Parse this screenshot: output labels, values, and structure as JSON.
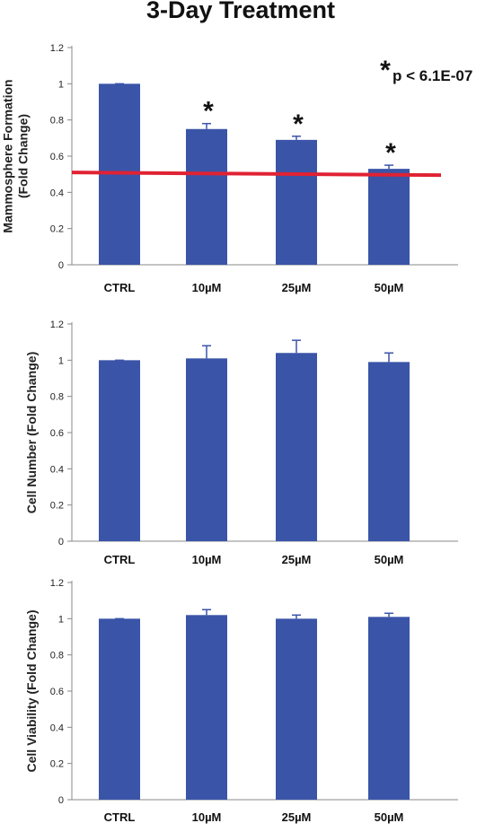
{
  "title": "3-Day Treatment",
  "colors": {
    "bar": "#3a54a8",
    "threshold": "#e02233",
    "axis": "#888888"
  },
  "chart_data": [
    {
      "type": "bar",
      "ylabel": [
        "Mammosphere Formation",
        "(Fold Change)"
      ],
      "categories": [
        "CTRL",
        "10µM",
        "25µM",
        "50µM"
      ],
      "values": [
        1.0,
        0.75,
        0.69,
        0.53
      ],
      "error": [
        0.0,
        0.03,
        0.02,
        0.02
      ],
      "ylim": [
        0,
        1.2
      ],
      "yticks": [
        "0",
        "0.2",
        "0.4",
        "0.6",
        "0.8",
        "1",
        "1.2"
      ],
      "significance": [
        "",
        "*",
        "*",
        "*"
      ],
      "annotation": {
        "star": "*",
        "text": "p < 6.1E-07"
      },
      "threshold": {
        "y_start": 0.51,
        "y_end": 0.495
      }
    },
    {
      "type": "bar",
      "ylabel": [
        "Cell Number  (Fold Change)"
      ],
      "categories": [
        "CTRL",
        "10µM",
        "25µM",
        "50µM"
      ],
      "values": [
        1.0,
        1.01,
        1.04,
        0.99
      ],
      "error": [
        0.0,
        0.07,
        0.07,
        0.05
      ],
      "ylim": [
        0,
        1.2
      ],
      "yticks": [
        "0",
        "0.2",
        "0.4",
        "0.6",
        "0.8",
        "1",
        "1.2"
      ]
    },
    {
      "type": "bar",
      "ylabel": [
        "Cell Viability (Fold Change)"
      ],
      "categories": [
        "CTRL",
        "10µM",
        "25µM",
        "50µM"
      ],
      "values": [
        1.0,
        1.02,
        1.0,
        1.01
      ],
      "error": [
        0.0,
        0.03,
        0.02,
        0.02
      ],
      "ylim": [
        0,
        1.2
      ],
      "yticks": [
        "0",
        "0.2",
        "0.4",
        "0.6",
        "0.8",
        "1",
        "1.2"
      ]
    }
  ]
}
